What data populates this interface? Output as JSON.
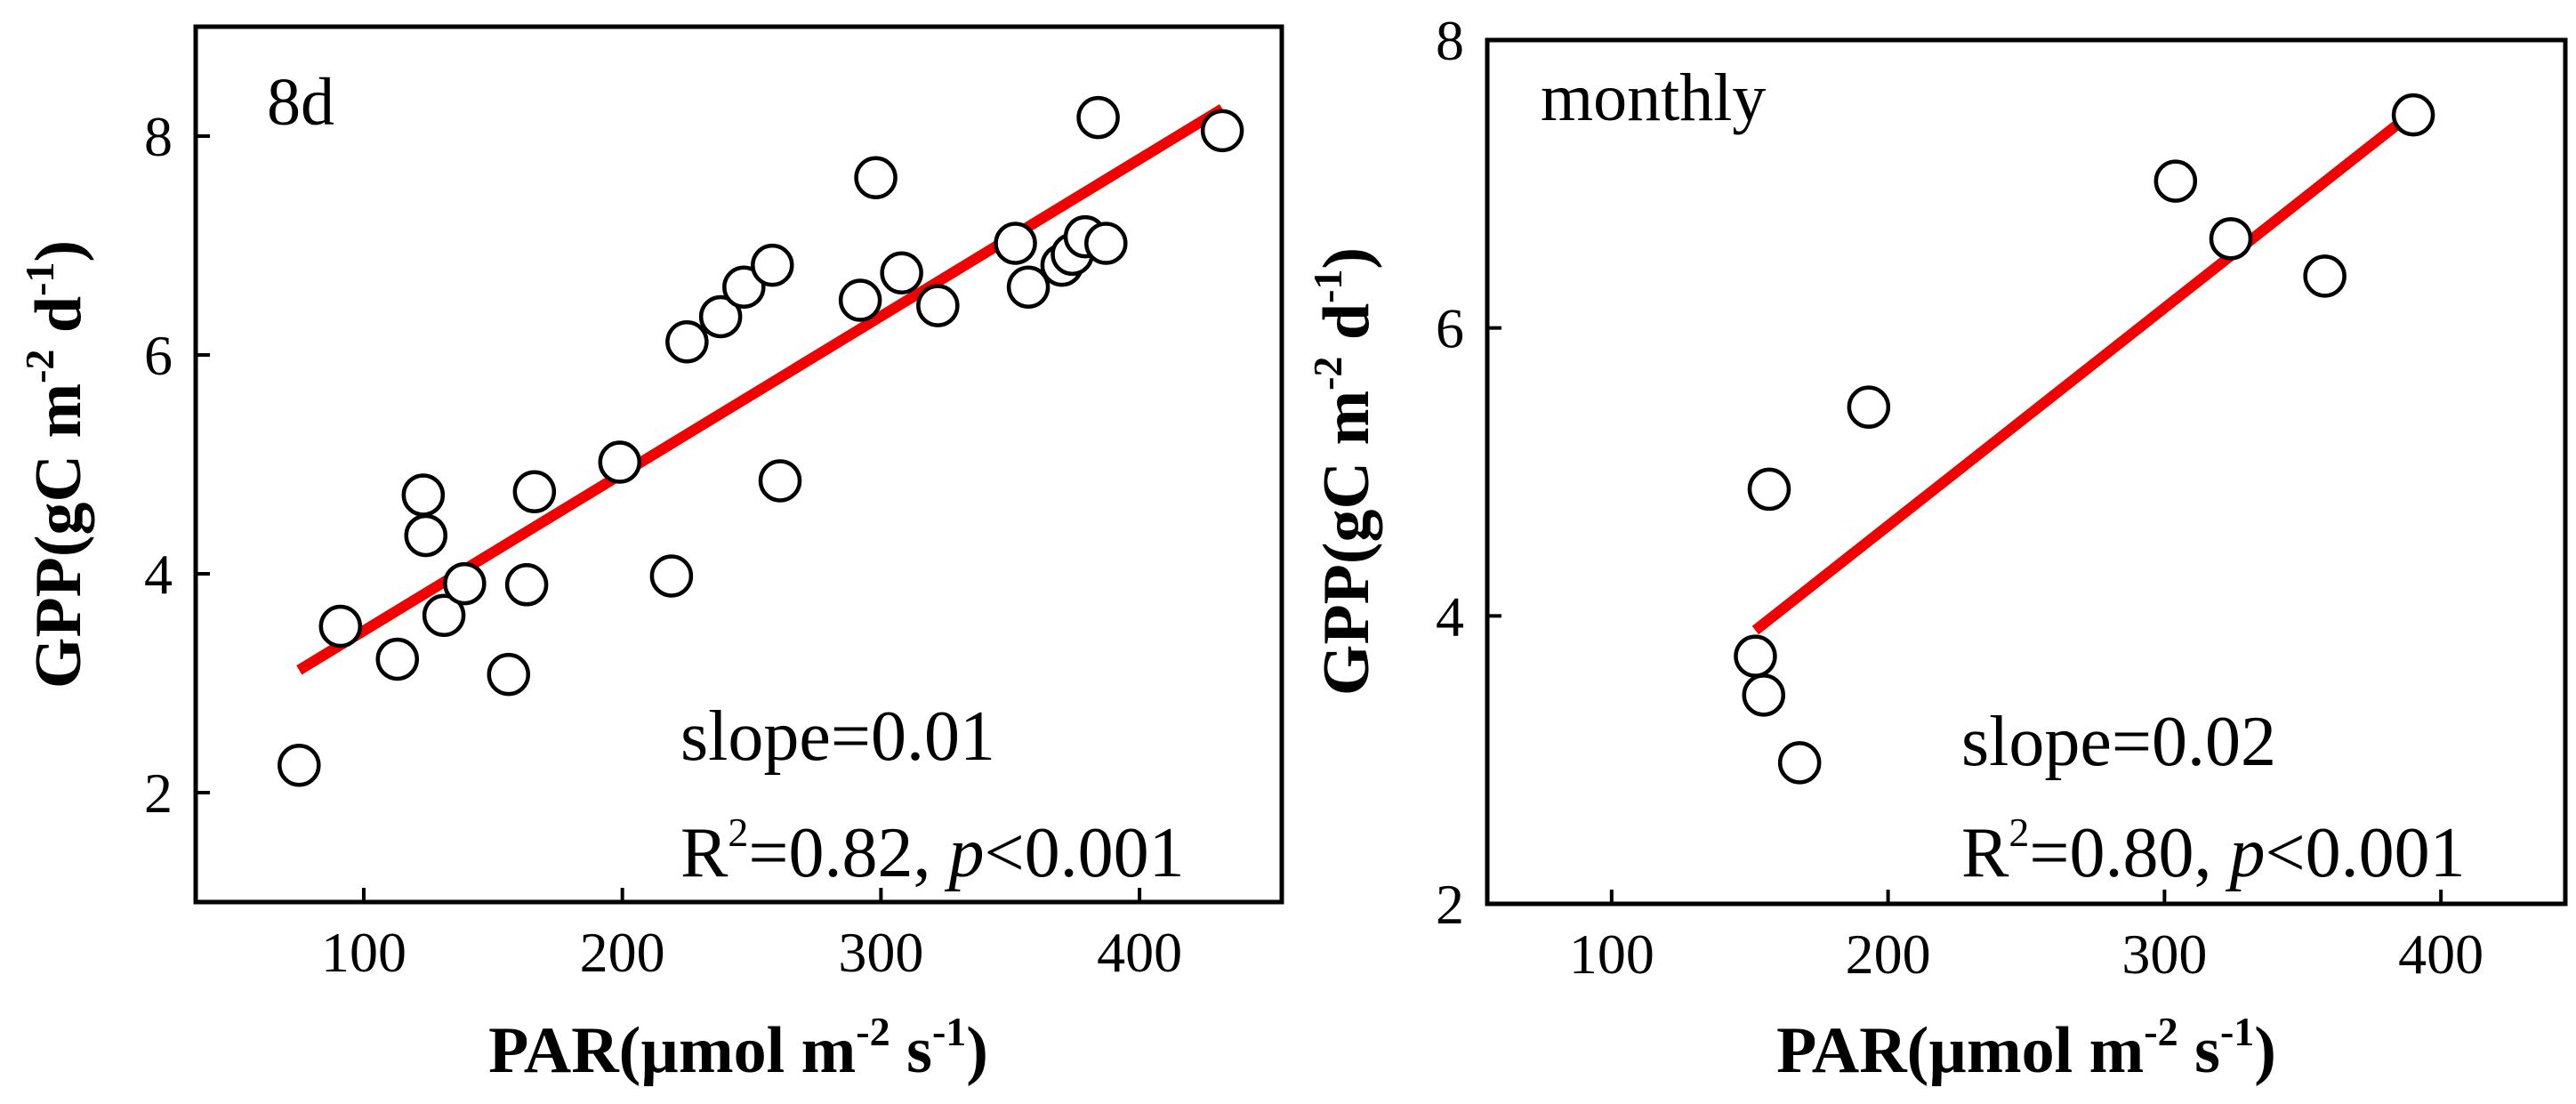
{
  "chart_data": [
    {
      "type": "scatter",
      "panel_label": "8d",
      "xlabel": "PAR(µmol m",
      "xlabel_sup1": "-2",
      "xlabel_mid": " s",
      "xlabel_sup2": "-1",
      "xlabel_end": ")",
      "ylabel": "GPP(gC m",
      "ylabel_sup1": "-2",
      "ylabel_mid": " d",
      "ylabel_sup2": "-1",
      "ylabel_end": ")",
      "xlim": [
        35,
        455
      ],
      "ylim": [
        1.0,
        9.0
      ],
      "xticks": [
        100,
        200,
        300,
        400
      ],
      "yticks": [
        2,
        4,
        6,
        8
      ],
      "x": [
        75,
        91,
        113,
        124,
        123,
        131,
        139,
        156,
        163,
        166,
        199,
        219,
        225,
        238,
        247,
        258,
        261,
        292,
        298,
        308,
        322,
        352,
        357,
        370,
        374,
        379,
        387,
        384,
        432
      ],
      "y": [
        2.25,
        3.52,
        3.22,
        4.35,
        4.72,
        3.62,
        3.91,
        3.08,
        3.9,
        4.75,
        5.02,
        3.98,
        6.12,
        6.35,
        6.62,
        6.82,
        4.85,
        6.5,
        7.62,
        6.75,
        6.45,
        7.02,
        6.62,
        6.82,
        6.92,
        7.08,
        7.02,
        8.17,
        8.05
      ],
      "fit": {
        "x": [
          75,
          432
        ],
        "y": [
          3.12,
          8.25
        ],
        "color": "#f20000"
      },
      "annotation_slope": "slope=0.01",
      "annotation_r": "R",
      "annotation_r_sup": "2",
      "annotation_r_rest": "=0.82, ",
      "annotation_p": "p",
      "annotation_p_rest": "<0.001"
    },
    {
      "type": "scatter",
      "panel_label": "monthly",
      "xlabel": "PAR(µmol m",
      "xlabel_sup1": "-2",
      "xlabel_mid": " s",
      "xlabel_sup2": "-1",
      "xlabel_end": ")",
      "ylabel": "GPP(gC m",
      "ylabel_sup1": "-2",
      "ylabel_mid": " d",
      "ylabel_sup2": "-1",
      "ylabel_end": ")",
      "xlim": [
        55,
        445
      ],
      "ylim": [
        2.0,
        8.0
      ],
      "xticks": [
        100,
        200,
        300,
        400
      ],
      "yticks": [
        2,
        4,
        6,
        8
      ],
      "x": [
        152,
        155,
        157,
        168,
        193,
        304,
        324,
        358,
        390
      ],
      "y": [
        3.72,
        3.45,
        4.88,
        2.98,
        5.45,
        7.02,
        6.62,
        6.36,
        7.48
      ],
      "fit": {
        "x": [
          152,
          390
        ],
        "y": [
          3.9,
          7.5
        ],
        "color": "#f20000"
      },
      "annotation_slope": "slope=0.02",
      "annotation_r": "R",
      "annotation_r_sup": "2",
      "annotation_r_rest": "=0.80, ",
      "annotation_p": "p",
      "annotation_p_rest": "<0.001"
    }
  ]
}
